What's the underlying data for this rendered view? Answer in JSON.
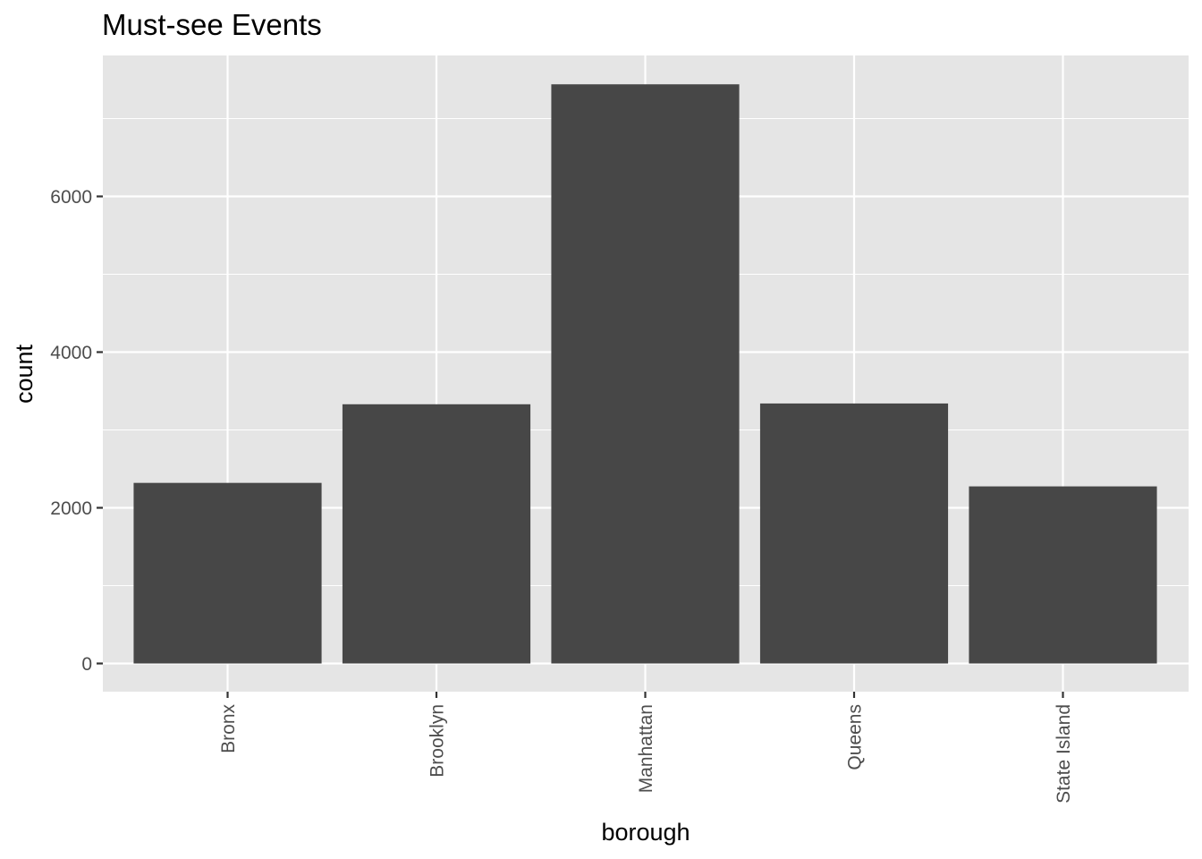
{
  "chart_data": {
    "type": "bar",
    "title": "Must-see Events",
    "xlabel": "borough",
    "ylabel": "count",
    "categories": [
      "Bronx",
      "Brooklyn",
      "Manhattan",
      "Queens",
      "State Island"
    ],
    "values": [
      2320,
      3330,
      7440,
      3340,
      2275
    ],
    "ylim": [
      0,
      7800
    ],
    "y_ticks": [
      {
        "value": 0,
        "label": "0"
      },
      {
        "value": 2000,
        "label": "2000"
      },
      {
        "value": 4000,
        "label": "4000"
      },
      {
        "value": 6000,
        "label": "6000"
      }
    ],
    "minor_y_ticks": [
      1000,
      3000,
      5000,
      7000
    ],
    "grid": true,
    "colors": {
      "panel": "#e5e5e5",
      "grid": "#ffffff",
      "bar": "#474747",
      "tick": "#333333"
    }
  }
}
